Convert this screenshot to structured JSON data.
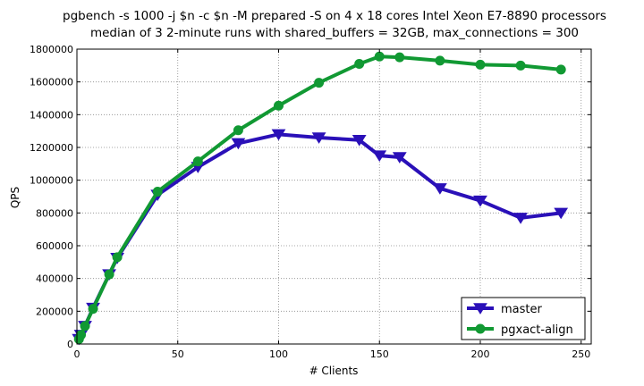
{
  "chart_data": {
    "type": "line",
    "title": "pgbench -s 1000 -j $n -c $n -M prepared -S on 4 x 18 cores Intel Xeon E7-8890 processors",
    "subtitle": "median of 3 2-minute runs with shared_buffers = 32GB, max_connections = 300",
    "xlabel": "# Clients",
    "ylabel": "QPS",
    "xlim": [
      0,
      255
    ],
    "ylim": [
      0,
      1800000
    ],
    "xticks": [
      0,
      50,
      100,
      150,
      200,
      250
    ],
    "yticks": [
      0,
      200000,
      400000,
      600000,
      800000,
      1000000,
      1200000,
      1400000,
      1600000,
      1800000
    ],
    "grid": true,
    "legend_position": "bottom-right",
    "series": [
      {
        "name": "master",
        "color": "#2a10b8",
        "marker": "triangle-down",
        "x": [
          1,
          2,
          4,
          8,
          16,
          20,
          40,
          60,
          80,
          100,
          120,
          140,
          150,
          160,
          180,
          200,
          220,
          240
        ],
        "y": [
          30000,
          55000,
          110000,
          220000,
          425000,
          525000,
          910000,
          1080000,
          1225000,
          1280000,
          1260000,
          1245000,
          1150000,
          1140000,
          950000,
          875000,
          770000,
          800000
        ]
      },
      {
        "name": "pgxact-align",
        "color": "#119933",
        "marker": "circle",
        "x": [
          1,
          2,
          4,
          8,
          16,
          20,
          40,
          60,
          80,
          100,
          120,
          140,
          150,
          160,
          180,
          200,
          220,
          240
        ],
        "y": [
          30000,
          55000,
          110000,
          215000,
          425000,
          530000,
          930000,
          1115000,
          1305000,
          1455000,
          1595000,
          1710000,
          1755000,
          1750000,
          1730000,
          1705000,
          1700000,
          1675000
        ]
      }
    ]
  }
}
